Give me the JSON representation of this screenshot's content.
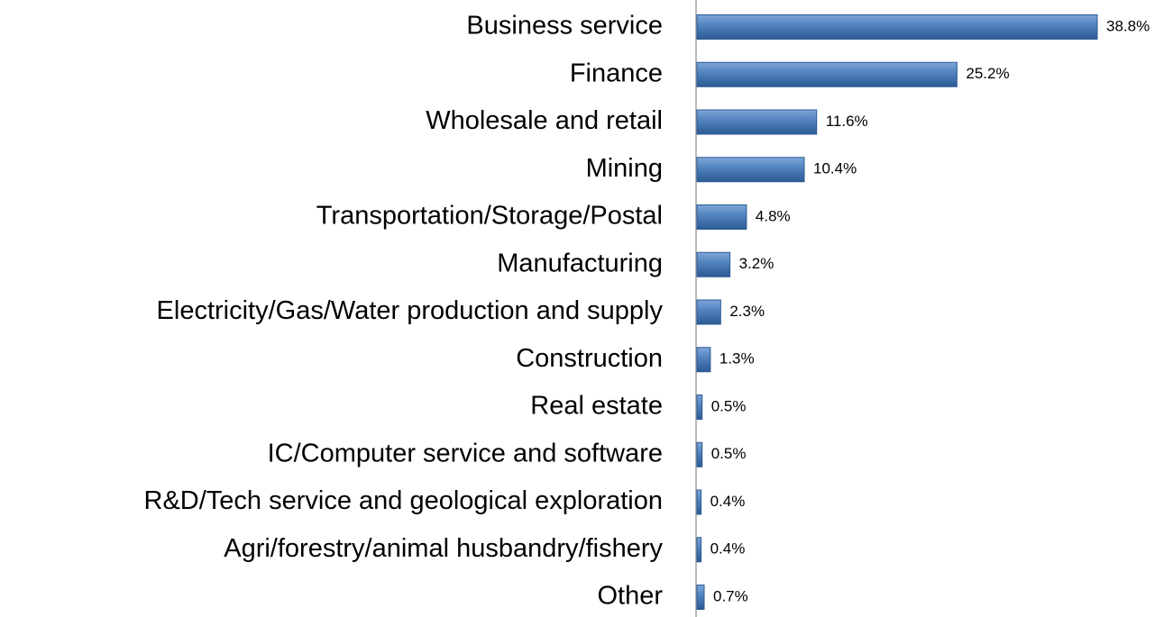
{
  "chart_data": {
    "type": "bar",
    "orientation": "horizontal",
    "categories": [
      "Business service",
      "Finance",
      "Wholesale and retail",
      "Mining",
      "Transportation/Storage/Postal",
      "Manufacturing",
      "Electricity/Gas/Water production and supply",
      "Construction",
      "Real estate",
      "IC/Computer service and software",
      "R&D/Tech service and geological exploration",
      "Agri/forestry/animal husbandry/fishery",
      "Other"
    ],
    "values": [
      38.8,
      25.2,
      11.6,
      10.4,
      4.8,
      3.2,
      2.3,
      1.3,
      0.5,
      0.5,
      0.4,
      0.4,
      0.7
    ],
    "value_labels": [
      "38.8%",
      "25.2%",
      "11.6%",
      "10.4%",
      "4.8%",
      "3.2%",
      "2.3%",
      "1.3%",
      "0.5%",
      "0.5%",
      "0.4%",
      "0.4%",
      "0.7%"
    ],
    "color": "#4f81bd"
  }
}
